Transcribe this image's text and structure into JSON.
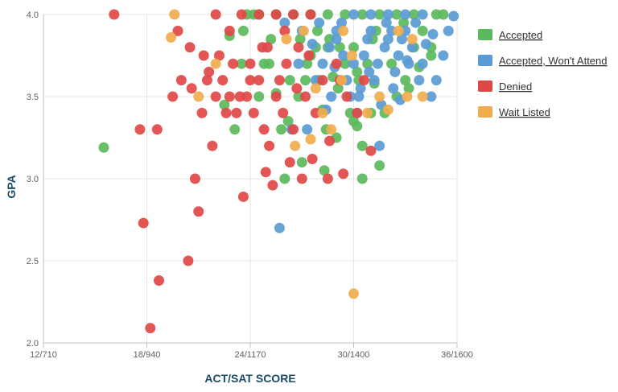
{
  "chart_data": {
    "type": "scatter",
    "xlabel": "ACT/SAT SCORE",
    "ylabel": "GPA",
    "x_ticks": [
      {
        "value": 12,
        "label": "12/710"
      },
      {
        "value": 18,
        "label": "18/940"
      },
      {
        "value": 24,
        "label": "24/1170"
      },
      {
        "value": 30,
        "label": "30/1400"
      },
      {
        "value": 36,
        "label": "36/1600"
      }
    ],
    "y_ticks": [
      {
        "value": 2.0,
        "label": "2.0"
      },
      {
        "value": 2.5,
        "label": "2.5"
      },
      {
        "value": 3.0,
        "label": "3.0"
      },
      {
        "value": 3.5,
        "label": "3.5"
      },
      {
        "value": 4.0,
        "label": "4.0"
      }
    ],
    "xlim": [
      12,
      36
    ],
    "ylim": [
      2.0,
      4.0
    ],
    "grid": true,
    "legend_position": "right",
    "series": [
      {
        "name": "Accepted",
        "color": "#5cb85c",
        "points": [
          [
            15.5,
            3.19
          ],
          [
            22.5,
            3.45
          ],
          [
            22.8,
            3.87
          ],
          [
            23.1,
            3.3
          ],
          [
            23.5,
            3.7
          ],
          [
            23.6,
            3.9
          ],
          [
            24.5,
            3.5
          ],
          [
            24.8,
            3.7
          ],
          [
            25.1,
            3.7
          ],
          [
            25.5,
            3.52
          ],
          [
            25.8,
            3.3
          ],
          [
            26,
            3.0
          ],
          [
            26.2,
            3.35
          ],
          [
            26.3,
            3.6
          ],
          [
            26.8,
            3.5
          ],
          [
            27,
            3.1
          ],
          [
            27.2,
            3.6
          ],
          [
            27.3,
            3.7
          ],
          [
            27.5,
            3.75
          ],
          [
            27.8,
            3.8
          ],
          [
            28,
            3.6
          ],
          [
            28.2,
            3.42
          ],
          [
            28.3,
            3.05
          ],
          [
            28.4,
            3.3
          ],
          [
            28.5,
            3.8
          ],
          [
            28.8,
            3.62
          ],
          [
            29,
            3.25
          ],
          [
            29.2,
            3.8
          ],
          [
            29.5,
            3.7
          ],
          [
            29.8,
            3.4
          ],
          [
            30,
            3.35
          ],
          [
            30,
            3.8
          ],
          [
            30.2,
            3.32
          ],
          [
            30.3,
            3.6
          ],
          [
            30.5,
            3.0
          ],
          [
            30.5,
            3.2
          ],
          [
            30.8,
            3.7
          ],
          [
            31,
            3.4
          ],
          [
            31.2,
            3.58
          ],
          [
            31.3,
            3.9
          ],
          [
            31.5,
            3.08
          ],
          [
            31.8,
            3.4
          ],
          [
            32.2,
            3.7
          ],
          [
            32.5,
            3.5
          ],
          [
            33,
            3.6
          ],
          [
            33.2,
            3.55
          ],
          [
            33.5,
            3.8
          ],
          [
            33.8,
            3.68
          ],
          [
            34,
            3.9
          ],
          [
            34.5,
            3.75
          ],
          [
            34.8,
            4.0
          ],
          [
            35.2,
            4.0
          ],
          [
            23.8,
            4.0
          ],
          [
            24.5,
            4.0
          ],
          [
            25.5,
            4.0
          ],
          [
            26.5,
            4.0
          ],
          [
            27.5,
            4.0
          ],
          [
            28.5,
            4.0
          ],
          [
            29.5,
            4.0
          ],
          [
            30.5,
            4.0
          ],
          [
            31.5,
            4.0
          ],
          [
            32.5,
            4.0
          ],
          [
            33.5,
            4.0
          ],
          [
            34.5,
            3.8
          ],
          [
            30.2,
            3.65
          ],
          [
            29.1,
            3.55
          ],
          [
            28.6,
            3.85
          ],
          [
            27.9,
            3.9
          ],
          [
            26.9,
            3.85
          ],
          [
            31.1,
            3.85
          ],
          [
            32.9,
            3.95
          ],
          [
            24.2,
            4.0
          ],
          [
            25.2,
            3.85
          ]
        ]
      },
      {
        "name": "Accepted, Won't Attend",
        "color": "#5b9bd5",
        "points": [
          [
            25.7,
            2.7
          ],
          [
            26.4,
            3.3
          ],
          [
            27.3,
            3.3
          ],
          [
            27.8,
            3.6
          ],
          [
            28.2,
            3.7
          ],
          [
            28.6,
            3.8
          ],
          [
            28.7,
            3.5
          ],
          [
            29.0,
            3.85
          ],
          [
            29.3,
            3.95
          ],
          [
            29.6,
            3.6
          ],
          [
            29.8,
            3.5
          ],
          [
            30.0,
            3.7
          ],
          [
            30.2,
            3.4
          ],
          [
            30.4,
            3.55
          ],
          [
            30.6,
            3.75
          ],
          [
            30.8,
            3.85
          ],
          [
            31.0,
            3.9
          ],
          [
            31.2,
            3.6
          ],
          [
            31.4,
            3.7
          ],
          [
            31.5,
            3.2
          ],
          [
            31.6,
            3.45
          ],
          [
            31.8,
            3.8
          ],
          [
            32.0,
            3.85
          ],
          [
            32.2,
            3.9
          ],
          [
            32.4,
            3.65
          ],
          [
            32.6,
            3.75
          ],
          [
            32.7,
            3.48
          ],
          [
            32.8,
            3.85
          ],
          [
            33.0,
            3.9
          ],
          [
            33.2,
            3.7
          ],
          [
            33.4,
            3.8
          ],
          [
            33.6,
            3.95
          ],
          [
            33.8,
            3.6
          ],
          [
            34.0,
            3.7
          ],
          [
            34.2,
            3.82
          ],
          [
            34.5,
            3.5
          ],
          [
            34.8,
            3.6
          ],
          [
            35.2,
            3.75
          ],
          [
            35.5,
            3.9
          ],
          [
            35.8,
            3.99
          ],
          [
            26.0,
            3.95
          ],
          [
            27.0,
            3.9
          ],
          [
            28.0,
            3.95
          ],
          [
            29.0,
            3.9
          ],
          [
            30.0,
            4.0
          ],
          [
            31.0,
            4.0
          ],
          [
            32.0,
            4.0
          ],
          [
            33.0,
            4.0
          ],
          [
            34.0,
            4.0
          ],
          [
            29.4,
            3.75
          ],
          [
            30.9,
            3.65
          ],
          [
            32.3,
            3.55
          ],
          [
            33.1,
            3.72
          ],
          [
            28.4,
            3.42
          ],
          [
            30.3,
            3.5
          ],
          [
            31.9,
            3.95
          ],
          [
            34.6,
            3.88
          ],
          [
            26.8,
            3.7
          ],
          [
            27.6,
            3.82
          ],
          [
            28.9,
            3.68
          ]
        ]
      },
      {
        "name": "Denied",
        "color": "#e04848",
        "points": [
          [
            16.1,
            4.0
          ],
          [
            17.6,
            3.3
          ],
          [
            17.8,
            2.73
          ],
          [
            18.2,
            2.09
          ],
          [
            18.6,
            3.3
          ],
          [
            18.7,
            2.38
          ],
          [
            19.5,
            3.5
          ],
          [
            19.8,
            3.9
          ],
          [
            20.0,
            3.6
          ],
          [
            20.4,
            2.5
          ],
          [
            20.5,
            3.8
          ],
          [
            20.6,
            3.55
          ],
          [
            20.8,
            3.0
          ],
          [
            21.0,
            2.8
          ],
          [
            21.2,
            3.4
          ],
          [
            21.5,
            3.6
          ],
          [
            21.6,
            3.65
          ],
          [
            21.8,
            3.2
          ],
          [
            22.0,
            3.5
          ],
          [
            22.2,
            3.75
          ],
          [
            22.4,
            3.6
          ],
          [
            22.6,
            3.4
          ],
          [
            22.8,
            3.5
          ],
          [
            23.0,
            3.7
          ],
          [
            23.2,
            3.4
          ],
          [
            23.4,
            3.5
          ],
          [
            23.6,
            2.89
          ],
          [
            23.8,
            3.5
          ],
          [
            24.0,
            3.7
          ],
          [
            24.2,
            3.4
          ],
          [
            24.5,
            3.6
          ],
          [
            24.7,
            3.8
          ],
          [
            24.9,
            3.04
          ],
          [
            25.1,
            3.2
          ],
          [
            25.3,
            2.96
          ],
          [
            25.5,
            3.5
          ],
          [
            25.7,
            3.6
          ],
          [
            25.9,
            3.4
          ],
          [
            26.1,
            3.7
          ],
          [
            26.3,
            3.1
          ],
          [
            26.5,
            3.3
          ],
          [
            26.8,
            3.8
          ],
          [
            27.0,
            3.0
          ],
          [
            27.2,
            3.5
          ],
          [
            27.4,
            3.75
          ],
          [
            27.6,
            3.12
          ],
          [
            27.8,
            3.4
          ],
          [
            28.2,
            3.6
          ],
          [
            28.5,
            3.0
          ],
          [
            28.6,
            3.23
          ],
          [
            29.2,
            3.6
          ],
          [
            29.4,
            3.03
          ],
          [
            29.6,
            3.5
          ],
          [
            30.2,
            3.4
          ],
          [
            30.6,
            3.6
          ],
          [
            31.0,
            3.17
          ],
          [
            22.0,
            4.0
          ],
          [
            23.5,
            4.0
          ],
          [
            24.5,
            4.0
          ],
          [
            25.5,
            4.0
          ],
          [
            26.5,
            4.0
          ],
          [
            27.5,
            4.0
          ],
          [
            24.0,
            3.6
          ],
          [
            25.0,
            3.8
          ],
          [
            26.0,
            3.9
          ],
          [
            22.8,
            3.9
          ],
          [
            21.3,
            3.75
          ],
          [
            24.8,
            3.3
          ],
          [
            26.7,
            3.55
          ],
          [
            29.0,
            3.7
          ]
        ]
      },
      {
        "name": "Wait Listed",
        "color": "#f0ad4e",
        "points": [
          [
            19.4,
            3.86
          ],
          [
            19.6,
            4.0
          ],
          [
            21.0,
            3.5
          ],
          [
            22.0,
            3.7
          ],
          [
            26.6,
            3.2
          ],
          [
            27.1,
            3.9
          ],
          [
            27.5,
            3.24
          ],
          [
            28.2,
            3.4
          ],
          [
            28.7,
            3.3
          ],
          [
            29.3,
            3.6
          ],
          [
            29.4,
            3.9
          ],
          [
            30.0,
            2.3
          ],
          [
            30.8,
            3.4
          ],
          [
            31.5,
            3.5
          ],
          [
            32.0,
            3.42
          ],
          [
            33.1,
            3.5
          ],
          [
            33.4,
            3.85
          ],
          [
            34.0,
            3.5
          ],
          [
            27.8,
            3.55
          ],
          [
            26.1,
            3.85
          ],
          [
            29.9,
            3.75
          ],
          [
            32.6,
            3.9
          ]
        ]
      }
    ]
  }
}
